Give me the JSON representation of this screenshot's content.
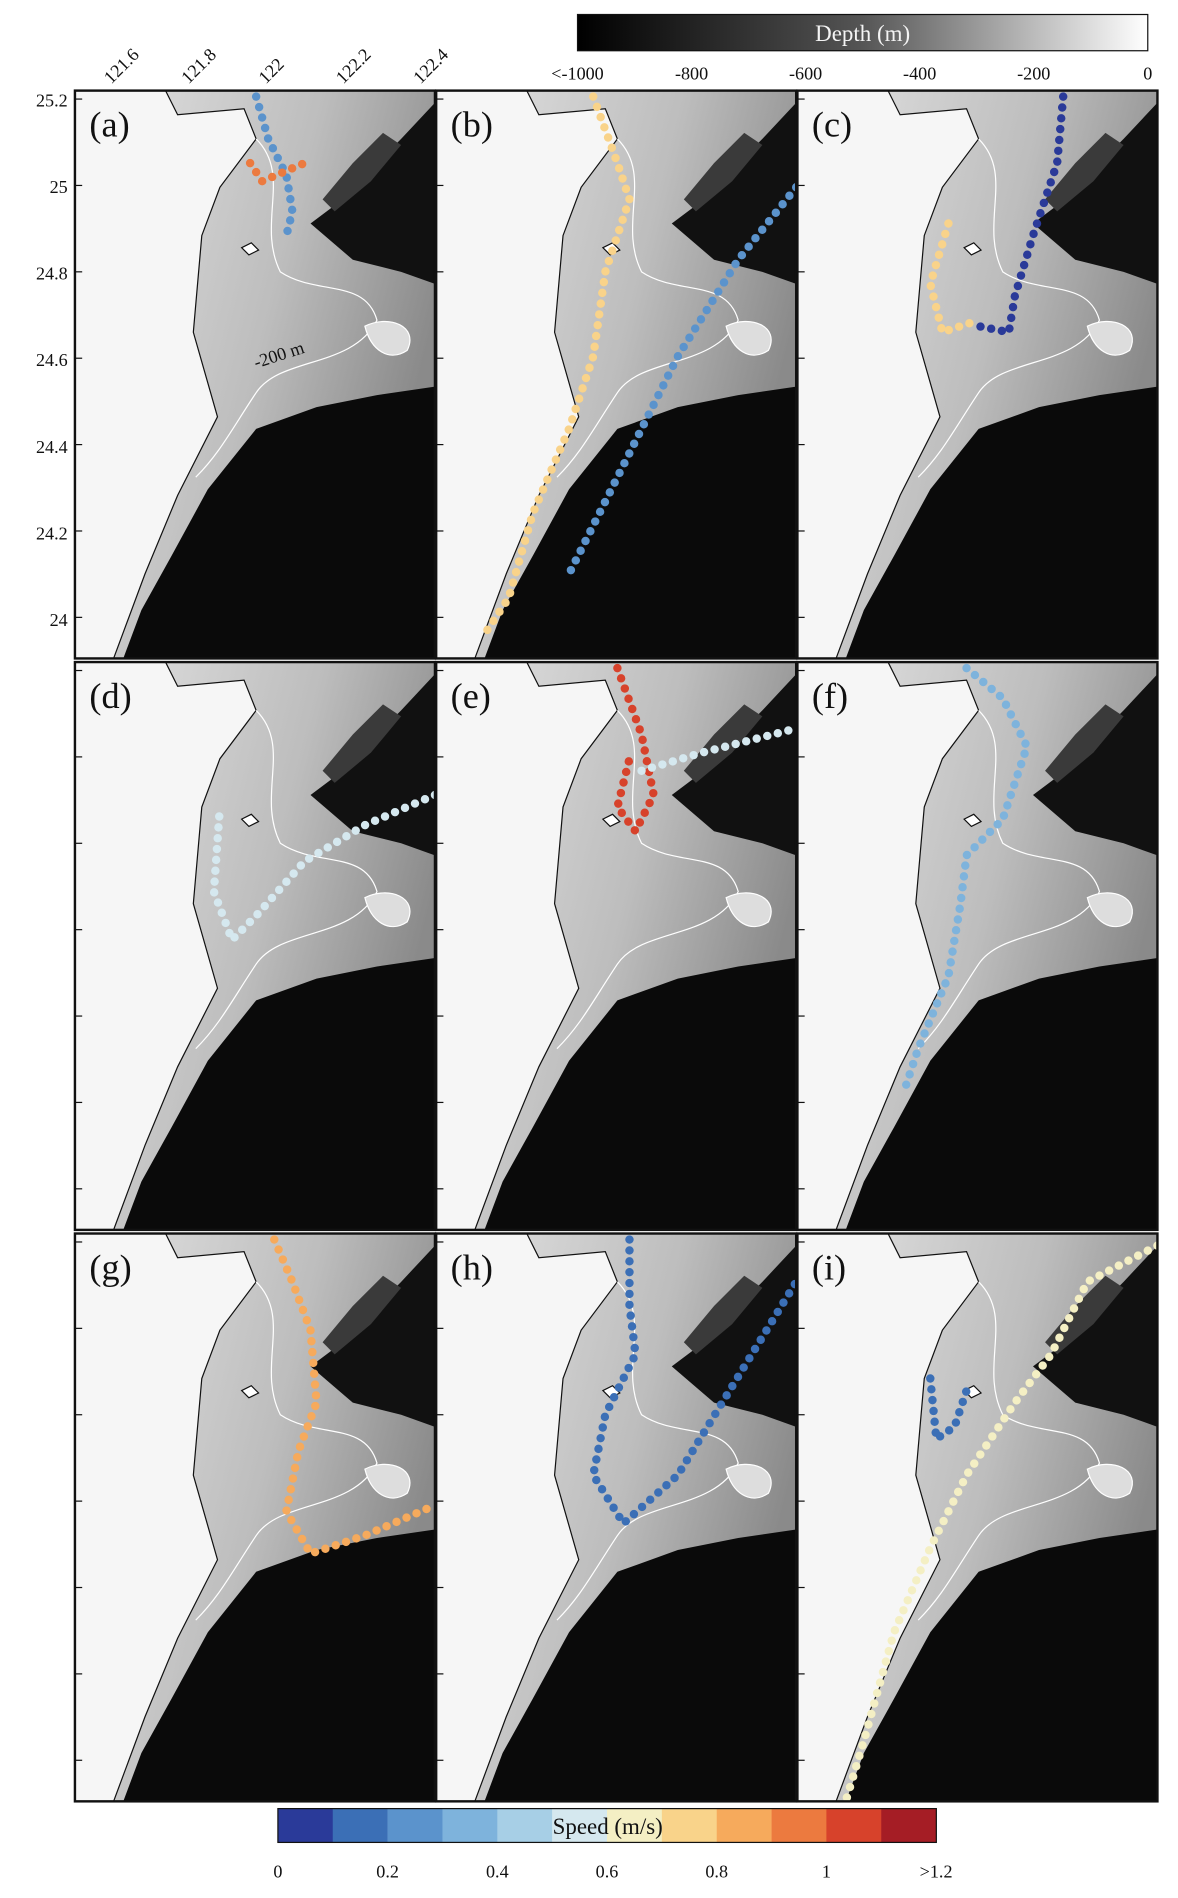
{
  "depth_colorbar": {
    "title": "Depth (m)",
    "ticks": [
      "<-1000",
      "-800",
      "-600",
      "-400",
      "-200",
      "0"
    ]
  },
  "speed_colorbar": {
    "title": "Speed (m/s)",
    "ticks": [
      "0",
      "0.2",
      "0.4",
      "0.6",
      "0.8",
      "1",
      ">1.2"
    ]
  },
  "lat_ticks": [
    "25.2",
    "25",
    "24.8",
    "24.6",
    "24.4",
    "24.2",
    "24"
  ],
  "lon_ticks": [
    "121.6",
    "121.8",
    "122",
    "122.2",
    "122.4"
  ],
  "panels": [
    "(a)",
    "(b)",
    "(c)",
    "(d)",
    "(e)",
    "(f)",
    "(g)",
    "(h)",
    "(i)"
  ],
  "annotation": "-200 m"
}
